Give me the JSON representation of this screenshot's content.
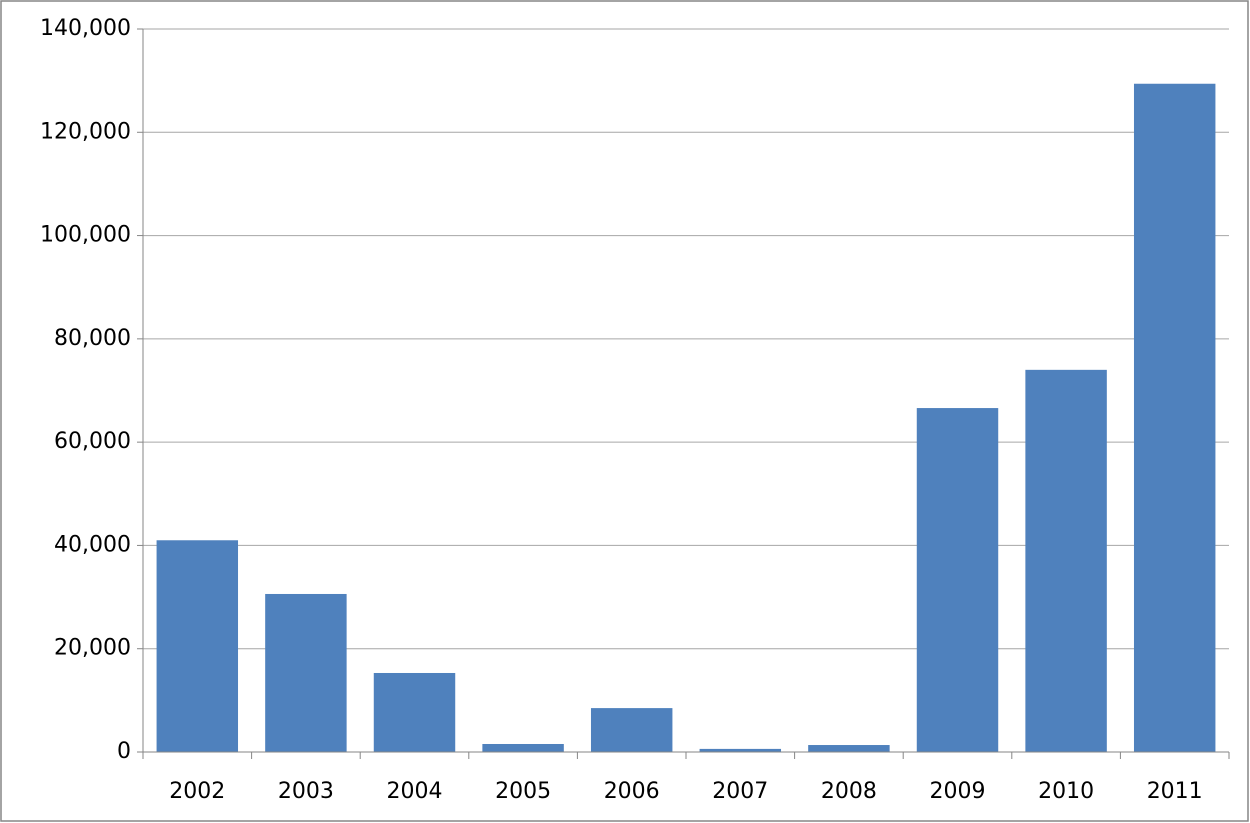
{
  "chart_data": {
    "type": "bar",
    "categories": [
      "2002",
      "2003",
      "2004",
      "2005",
      "2006",
      "2007",
      "2008",
      "2009",
      "2010",
      "2011"
    ],
    "values": [
      41000,
      30600,
      15300,
      1550,
      8500,
      600,
      1350,
      66600,
      74000,
      129400
    ],
    "color": "#4f81bd",
    "ylim": [
      0,
      140000
    ],
    "yticks": [
      0,
      {
        "value": 20000,
        "label": "20,000"
      },
      {
        "value": 40000,
        "label": "40,000"
      },
      {
        "value": 60000,
        "label": "60,000"
      },
      {
        "value": 80000,
        "label": "80,000"
      },
      {
        "value": 100000,
        "label": "100,000"
      },
      {
        "value": 120000,
        "label": "120,000"
      },
      {
        "value": 140000,
        "label": "140,000"
      }
    ],
    "grid": true
  }
}
